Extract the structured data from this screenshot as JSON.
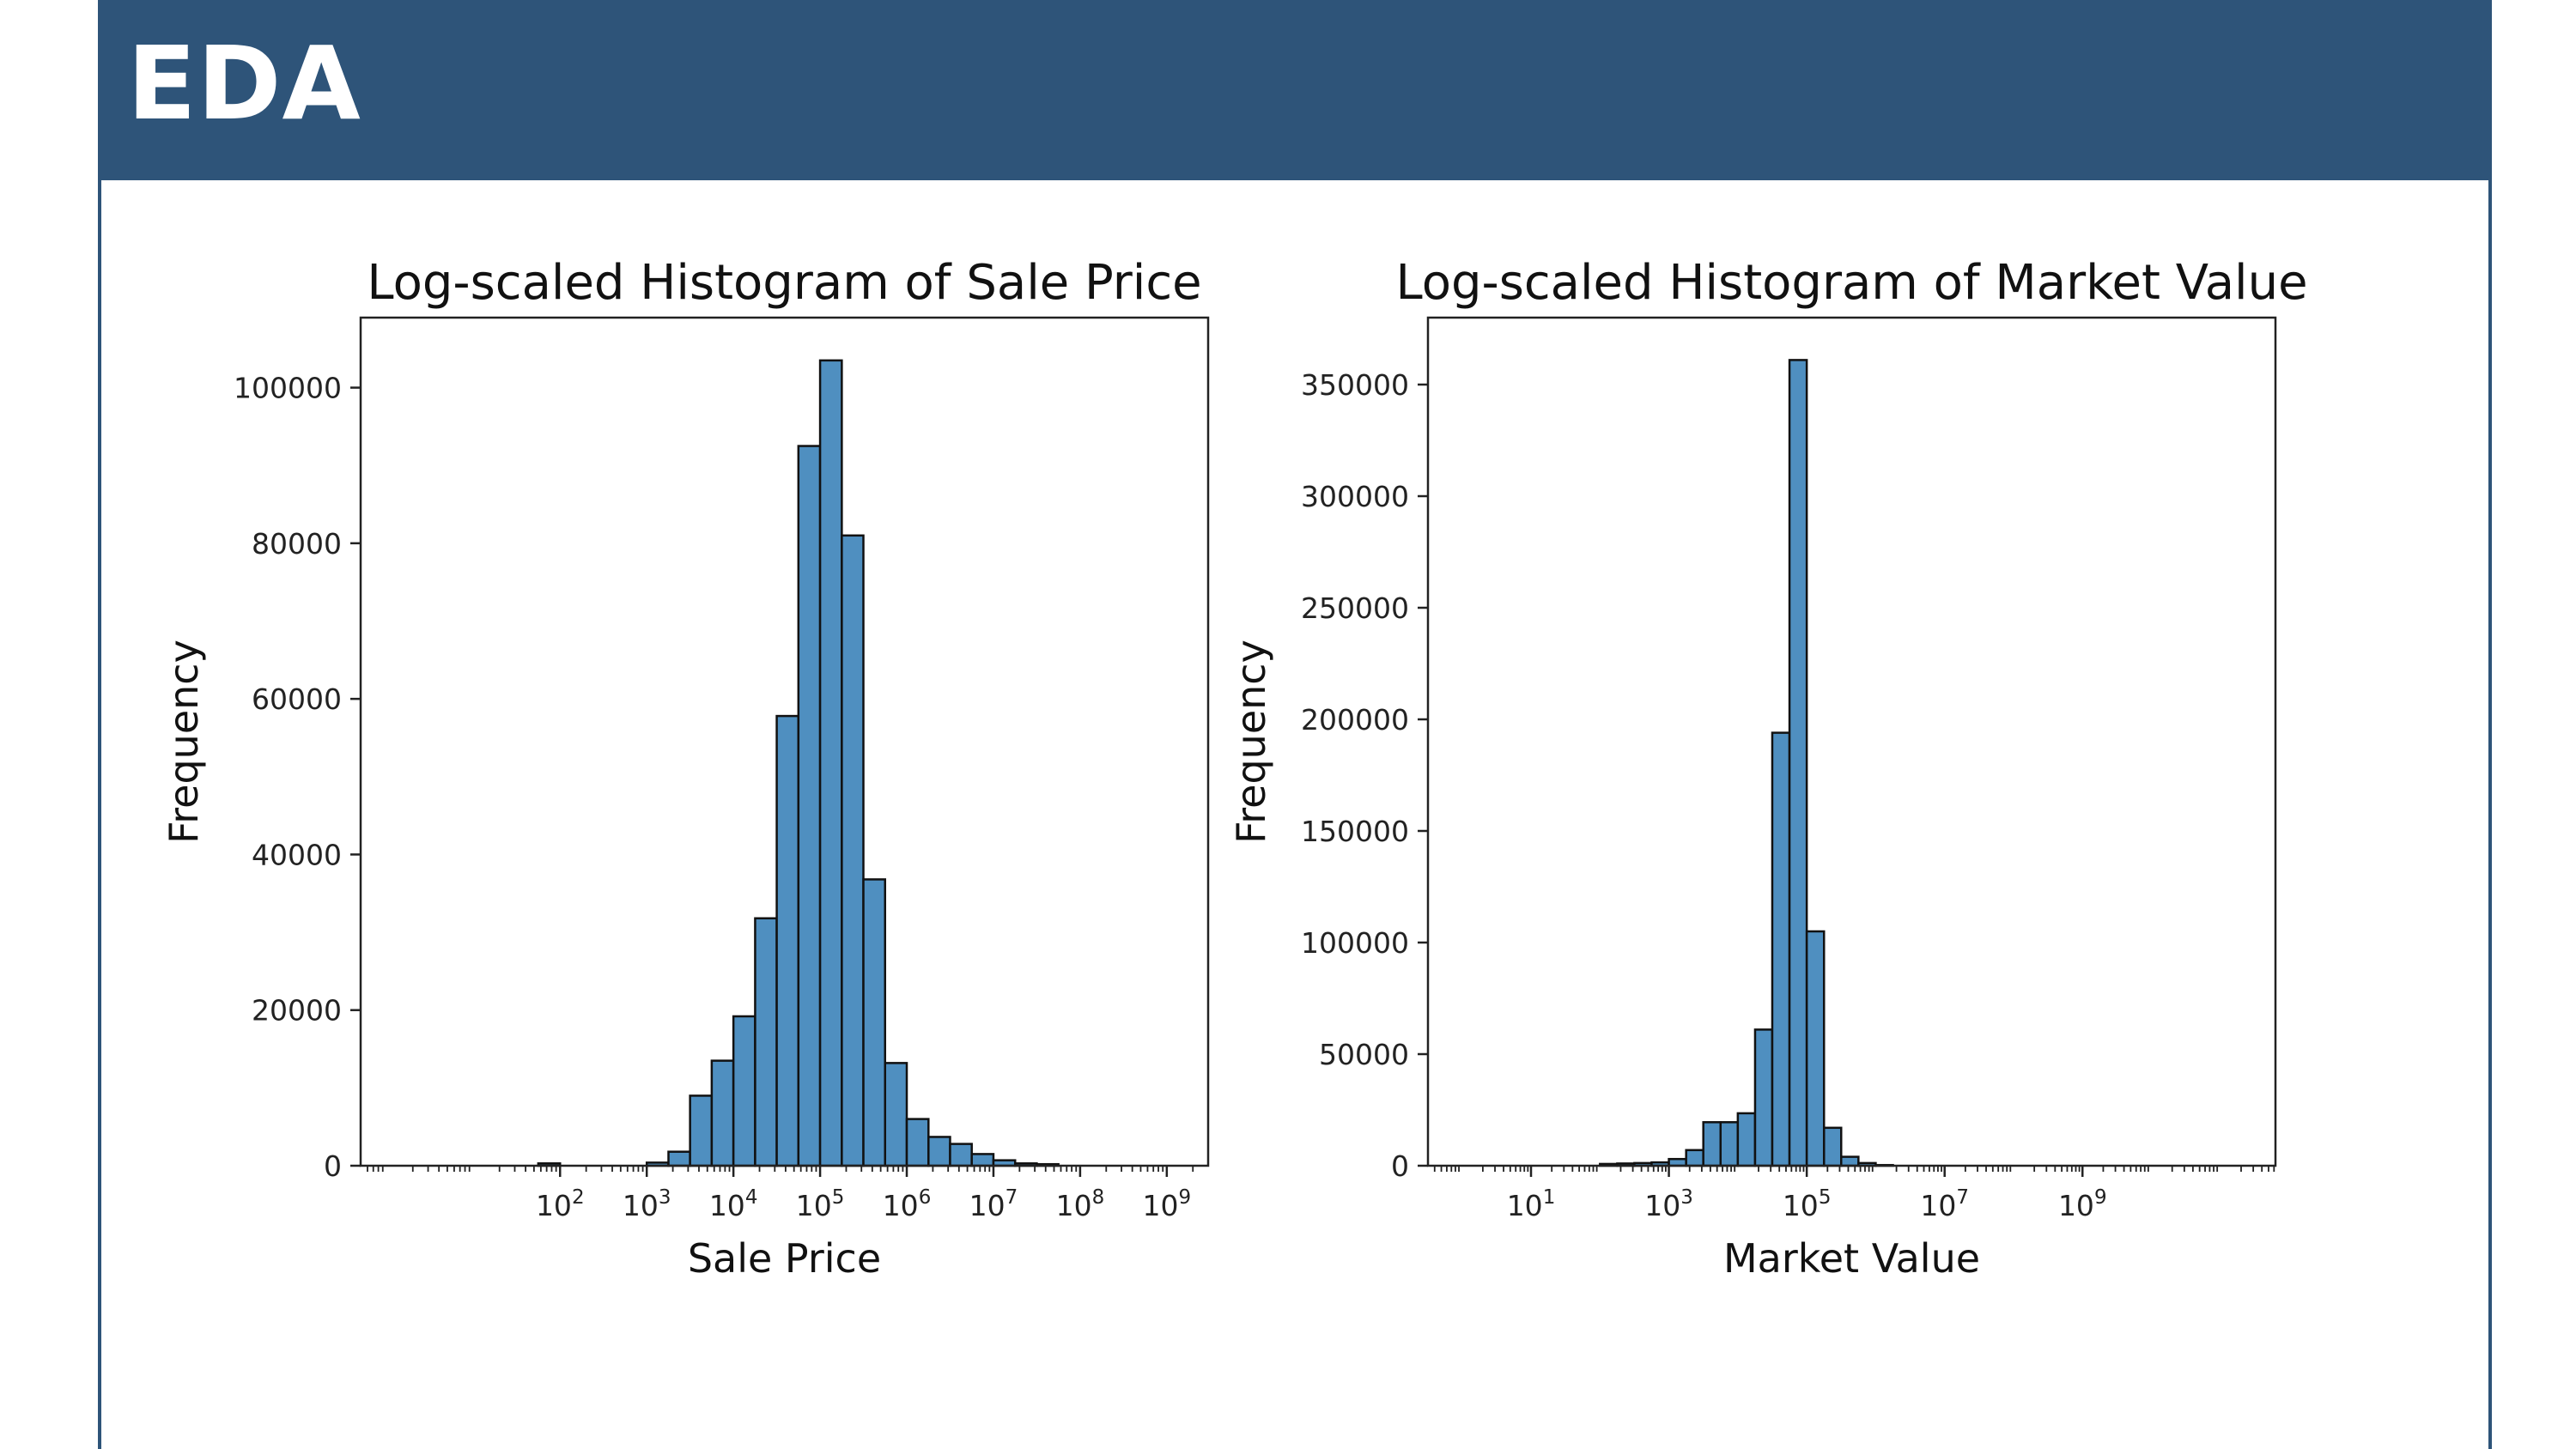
{
  "header": {
    "title": "EDA"
  },
  "chart_data": [
    {
      "type": "bar",
      "scale_x": "log",
      "title": "Log-scaled Histogram of Sale Price",
      "xlabel": "Sale Price",
      "ylabel": "Frequency",
      "xlim": [
        0.5,
        3000000000.0
      ],
      "ylim": [
        0,
        109000
      ],
      "yticks": [
        0,
        20000,
        40000,
        60000,
        80000,
        100000
      ],
      "ytick_labels": [
        "0",
        "20000",
        "40000",
        "60000",
        "80000",
        "100000"
      ],
      "xticks": [
        100.0,
        1000.0,
        10000.0,
        100000.0,
        1000000.0,
        10000000.0,
        100000000.0,
        1000000000.0
      ],
      "xtick_labels": [
        {
          "base": "10",
          "exp": "2"
        },
        {
          "base": "10",
          "exp": "3"
        },
        {
          "base": "10",
          "exp": "4"
        },
        {
          "base": "10",
          "exp": "5"
        },
        {
          "base": "10",
          "exp": "6"
        },
        {
          "base": "10",
          "exp": "7"
        },
        {
          "base": "10",
          "exp": "8"
        },
        {
          "base": "10",
          "exp": "9"
        }
      ],
      "bins": [
        {
          "from": 56,
          "to": 100,
          "count": 300
        },
        {
          "from": 1000,
          "to": 1780,
          "count": 400
        },
        {
          "from": 1780,
          "to": 3160,
          "count": 1800
        },
        {
          "from": 3160,
          "to": 5620,
          "count": 9000
        },
        {
          "from": 5620,
          "to": 10000,
          "count": 13500
        },
        {
          "from": 10000,
          "to": 17800,
          "count": 19200
        },
        {
          "from": 17800,
          "to": 31600,
          "count": 31800
        },
        {
          "from": 31600,
          "to": 56200,
          "count": 57800
        },
        {
          "from": 56200,
          "to": 100000,
          "count": 92500
        },
        {
          "from": 100000,
          "to": 178000,
          "count": 103500
        },
        {
          "from": 178000,
          "to": 316000,
          "count": 81000
        },
        {
          "from": 316000,
          "to": 562000,
          "count": 36800
        },
        {
          "from": 562000,
          "to": 1000000,
          "count": 13200
        },
        {
          "from": 1000000,
          "to": 1780000,
          "count": 6000
        },
        {
          "from": 1780000,
          "to": 3160000,
          "count": 3700
        },
        {
          "from": 3160000,
          "to": 5620000,
          "count": 2800
        },
        {
          "from": 5620000,
          "to": 10000000,
          "count": 1500
        },
        {
          "from": 10000000,
          "to": 17800000,
          "count": 700
        },
        {
          "from": 17800000,
          "to": 31600000,
          "count": 300
        },
        {
          "from": 31600000,
          "to": 56200000,
          "count": 200
        }
      ]
    },
    {
      "type": "bar",
      "scale_x": "log",
      "title": "Log-scaled Histogram of Market Value",
      "xlabel": "Market Value",
      "ylabel": "Frequency",
      "xlim": [
        0.32,
        630000000000.0
      ],
      "ylim": [
        0,
        380000
      ],
      "yticks": [
        0,
        50000,
        100000,
        150000,
        200000,
        250000,
        300000,
        350000
      ],
      "ytick_labels": [
        "0",
        "50000",
        "100000",
        "150000",
        "200000",
        "250000",
        "300000",
        "350000"
      ],
      "xticks": [
        10.0,
        1000.0,
        100000.0,
        10000000.0,
        1000000000.0
      ],
      "xtick_labels": [
        {
          "base": "10",
          "exp": "1"
        },
        {
          "base": "10",
          "exp": "3"
        },
        {
          "base": "10",
          "exp": "5"
        },
        {
          "base": "10",
          "exp": "7"
        },
        {
          "base": "10",
          "exp": "9"
        }
      ],
      "bins": [
        {
          "from": 100,
          "to": 178,
          "count": 800
        },
        {
          "from": 178,
          "to": 316,
          "count": 1000
        },
        {
          "from": 316,
          "to": 562,
          "count": 1200
        },
        {
          "from": 562,
          "to": 1000,
          "count": 1500
        },
        {
          "from": 1000,
          "to": 1780,
          "count": 3000
        },
        {
          "from": 1780,
          "to": 3160,
          "count": 7000
        },
        {
          "from": 3160,
          "to": 5620,
          "count": 19500
        },
        {
          "from": 5620,
          "to": 10000,
          "count": 19500
        },
        {
          "from": 10000,
          "to": 17800,
          "count": 23500
        },
        {
          "from": 17800,
          "to": 31600,
          "count": 61000
        },
        {
          "from": 31600,
          "to": 56200,
          "count": 194000
        },
        {
          "from": 56200,
          "to": 100000,
          "count": 361000
        },
        {
          "from": 100000,
          "to": 178000,
          "count": 105000
        },
        {
          "from": 178000,
          "to": 316000,
          "count": 17000
        },
        {
          "from": 316000,
          "to": 562000,
          "count": 4000
        },
        {
          "from": 562000,
          "to": 1000000,
          "count": 1200
        },
        {
          "from": 1000000,
          "to": 1780000,
          "count": 300
        }
      ]
    }
  ]
}
